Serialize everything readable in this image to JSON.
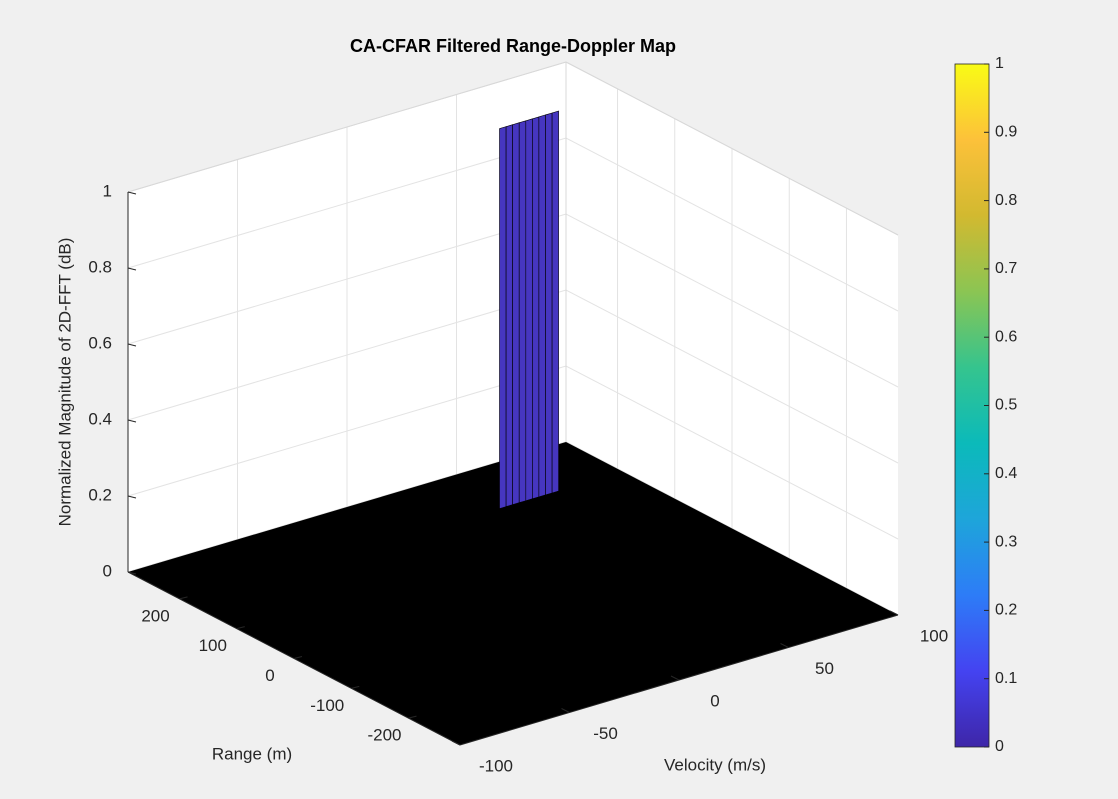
{
  "chart_data": {
    "type": "surface3d",
    "title": "CA-CFAR Filtered Range-Doppler Map",
    "xlabel": "Velocity (m/s)",
    "ylabel": "Range (m)",
    "zlabel": "Normalized Magnitude of 2D-FFT (dB)",
    "xlim": [
      -100,
      100
    ],
    "xticks": [
      -100,
      -50,
      0,
      50,
      100
    ],
    "ylim": [
      -290,
      290
    ],
    "yticks": [
      -200,
      -100,
      0,
      100,
      200
    ],
    "zlim": [
      0,
      1
    ],
    "zticks": [
      0,
      0.2,
      0.4,
      0.6,
      0.8,
      1
    ],
    "grid": true,
    "peak": {
      "range": 190,
      "velocities": [
        45,
        48,
        51,
        54,
        57,
        60,
        63,
        66,
        69
      ],
      "values": [
        1,
        1,
        1,
        1,
        1,
        1,
        1,
        1,
        1
      ],
      "color": "#4636c0"
    },
    "floor_color": "#000000",
    "colorbar": {
      "clim": [
        0,
        1
      ],
      "ticks": [
        0,
        0.1,
        0.2,
        0.3,
        0.4,
        0.5,
        0.6,
        0.7,
        0.8,
        0.9,
        1
      ],
      "colormap": [
        "#3e26a8",
        "#4443f1",
        "#2d7cf7",
        "#1ea5da",
        "#0bbaba",
        "#35c48e",
        "#8bc553",
        "#d2b930",
        "#fcc13a",
        "#f9fb15"
      ]
    }
  }
}
